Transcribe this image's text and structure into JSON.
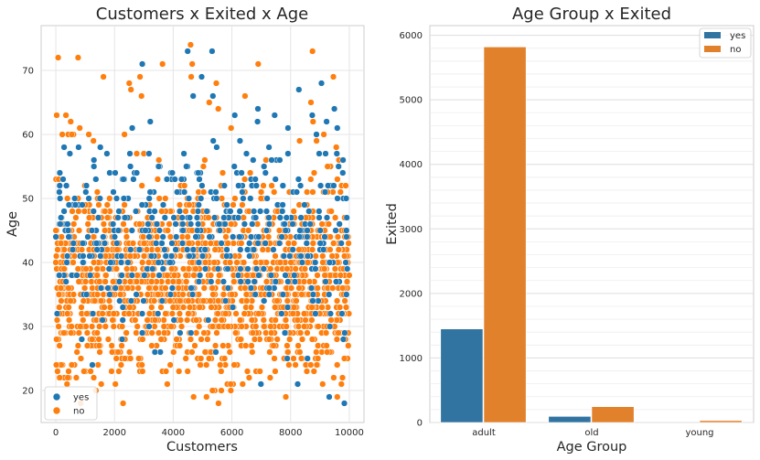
{
  "chart_data": [
    {
      "type": "scatter",
      "title": "Customers x Exited x Age",
      "xlabel": "Customers",
      "ylabel": "Age",
      "xlim": [
        -500,
        10500
      ],
      "ylim": [
        15,
        77
      ],
      "xticks": [
        0,
        2000,
        4000,
        6000,
        8000,
        10000
      ],
      "yticks": [
        20,
        30,
        40,
        50,
        60,
        70
      ],
      "grid": true,
      "legend": {
        "placement": "lower-left"
      },
      "series": [
        {
          "name": "yes",
          "color": "#1f77b4",
          "age_range": [
            18,
            74
          ]
        },
        {
          "name": "no",
          "color": "#ff7f0e",
          "age_range": [
            18,
            74
          ]
        }
      ],
      "customer_range": [
        0,
        9999
      ]
    },
    {
      "type": "bar",
      "title": "Age Group x Exited",
      "xlabel": "Age Group",
      "ylabel": "Exited",
      "categories": [
        "adult",
        "old",
        "young"
      ],
      "ylim": [
        0,
        6150
      ],
      "yticks": [
        0,
        1000,
        2000,
        3000,
        4000,
        5000,
        6000
      ],
      "grid": true,
      "legend": {
        "placement": "top-right"
      },
      "series": [
        {
          "name": "yes",
          "color": "#3274a1",
          "values": [
            1450,
            95,
            0
          ]
        },
        {
          "name": "no",
          "color": "#e1812c",
          "values": [
            5820,
            245,
            30
          ]
        }
      ]
    }
  ]
}
